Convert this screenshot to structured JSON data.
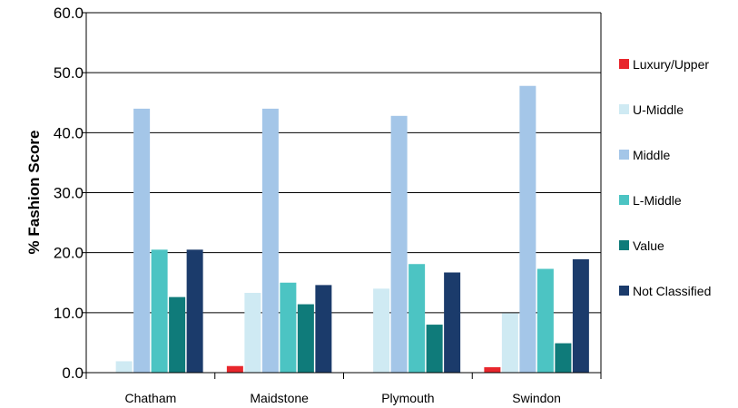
{
  "chart_data": {
    "type": "bar",
    "title": "",
    "xlabel": "",
    "ylabel": "% Fashion Score",
    "categories": [
      "Chatham",
      "Maidstone",
      "Plymouth",
      "Swindon"
    ],
    "ylim": [
      0,
      60
    ],
    "yticks": [
      "0.0",
      "10.0",
      "20.0",
      "30.0",
      "40.0",
      "50.0",
      "60.0"
    ],
    "grid": true,
    "legend_position": "right",
    "series": [
      {
        "name": "Luxury/Upper",
        "color": "#e8262c",
        "values": [
          0,
          1.1,
          0,
          0.9
        ]
      },
      {
        "name": "U-Middle",
        "color": "#cfeaf3",
        "values": [
          1.9,
          13.3,
          14.0,
          9.9
        ]
      },
      {
        "name": "Middle",
        "color": "#a4c6e8",
        "values": [
          44.0,
          44.0,
          42.8,
          47.8
        ]
      },
      {
        "name": "L-Middle",
        "color": "#4cc4c3",
        "values": [
          20.5,
          15.0,
          18.1,
          17.3
        ]
      },
      {
        "name": "Value",
        "color": "#0f7b7a",
        "values": [
          12.6,
          11.4,
          8.0,
          4.9
        ]
      },
      {
        "name": "Not Classified",
        "color": "#1b3b6b",
        "values": [
          20.5,
          14.6,
          16.7,
          18.9
        ]
      }
    ]
  }
}
